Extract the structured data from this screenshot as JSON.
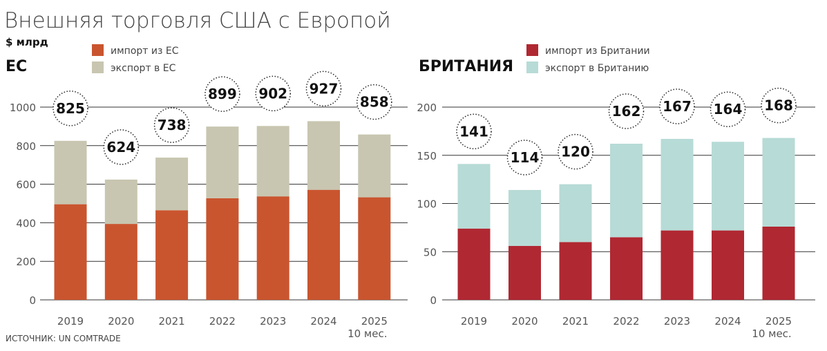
{
  "title": "Внешняя торговля США с Европой",
  "unit": "$ млрд",
  "source": "ИСТОЧНИК: UN COMTRADE",
  "chart_data": [
    {
      "type": "bar",
      "stacked": true,
      "title": "ЕС",
      "categories": [
        "2019",
        "2020",
        "2021",
        "2022",
        "2023",
        "2024",
        "2025"
      ],
      "category_note": "10 мес.",
      "ylim": [
        0,
        1000
      ],
      "yticks": [
        0,
        200,
        400,
        600,
        800,
        1000
      ],
      "grid": true,
      "legend": "top",
      "series": [
        {
          "name": "импорт из ЕС",
          "color": "#c9552f",
          "values": [
            496,
            394,
            465,
            527,
            537,
            571,
            532
          ]
        },
        {
          "name": "экспорт в ЕС",
          "color": "#c8c6b0",
          "values": [
            329,
            230,
            273,
            372,
            365,
            356,
            326
          ]
        }
      ],
      "totals": [
        825,
        624,
        738,
        899,
        902,
        927,
        858
      ]
    },
    {
      "type": "bar",
      "stacked": true,
      "title": "БРИТАНИЯ",
      "categories": [
        "2019",
        "2020",
        "2021",
        "2022",
        "2023",
        "2024",
        "2025"
      ],
      "category_note": "10 мес.",
      "ylim": [
        0,
        200
      ],
      "yticks": [
        0,
        50,
        100,
        150,
        200
      ],
      "grid": true,
      "legend": "top",
      "series": [
        {
          "name": "импорт из Британии",
          "color": "#b02832",
          "values": [
            74,
            56,
            60,
            65,
            72,
            72,
            76
          ]
        },
        {
          "name": "экспорт в Британию",
          "color": "#b7dbd6",
          "values": [
            67,
            58,
            60,
            97,
            95,
            92,
            92
          ]
        }
      ],
      "totals": [
        141,
        114,
        120,
        162,
        167,
        164,
        168
      ]
    }
  ]
}
